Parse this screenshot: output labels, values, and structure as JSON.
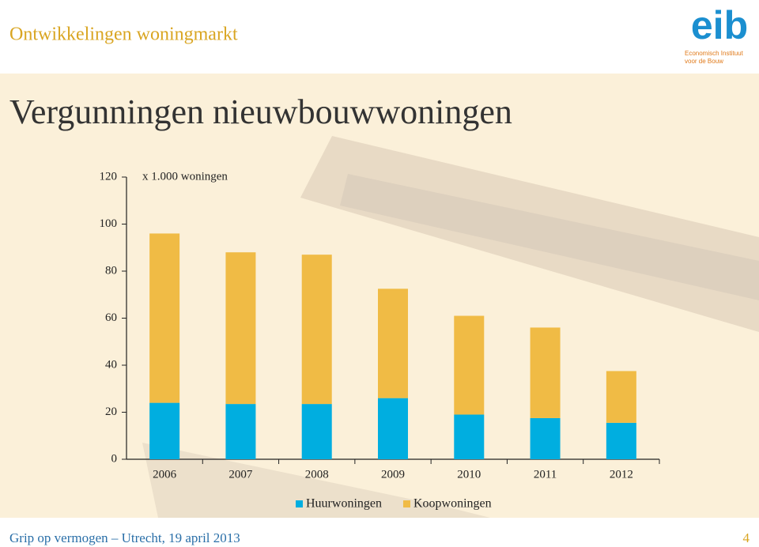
{
  "header": {
    "title": "Ontwikkelingen woningmarkt"
  },
  "logo": {
    "name": "eib",
    "subtitle_lines": [
      "Economisch Instituut",
      "voor de Bouw"
    ]
  },
  "slide_title": "Vergunningen nieuwbouwwoningen",
  "chart_data": {
    "type": "stacked_bar",
    "unit_label": "x 1.000 woningen",
    "categories": [
      "2006",
      "2007",
      "2008",
      "2009",
      "2010",
      "2011",
      "2012"
    ],
    "series": [
      {
        "name": "Huurwoningen",
        "color": "#00aee0",
        "values": [
          24,
          23.5,
          23.5,
          26,
          19,
          17.5,
          15.5
        ]
      },
      {
        "name": "Koopwoningen",
        "color": "#f0bb45",
        "values": [
          72,
          64.5,
          63.5,
          46.5,
          42,
          38.5,
          22
        ]
      }
    ],
    "ylim": [
      0,
      120
    ],
    "yticks": [
      0,
      20,
      40,
      60,
      80,
      100,
      120
    ],
    "legend": "bottom"
  },
  "footer": {
    "text": "Grip op vermogen – Utrecht, 19 april 2013",
    "page": "4"
  }
}
